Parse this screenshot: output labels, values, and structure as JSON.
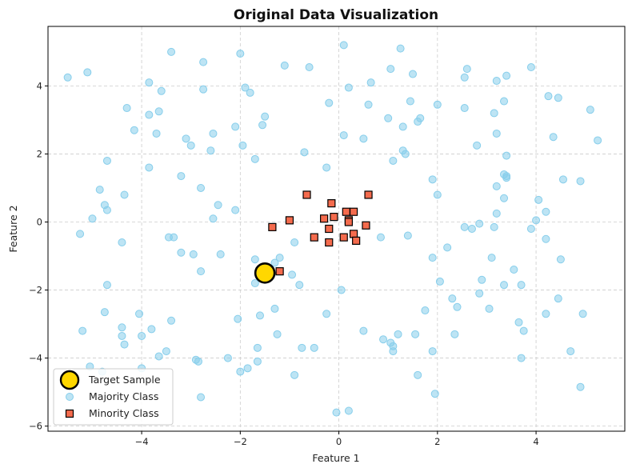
{
  "chart_data": {
    "type": "scatter",
    "title": "Original Data Visualization",
    "xlabel": "Feature 1",
    "ylabel": "Feature 2",
    "xlim": [
      -5.9,
      5.8
    ],
    "ylim": [
      -6.15,
      5.75
    ],
    "xticks": [
      -4,
      -2,
      0,
      2,
      4
    ],
    "yticks": [
      -6,
      -4,
      -2,
      0,
      2,
      4
    ],
    "grid": true,
    "legend_position": "bottom-left",
    "colors": {
      "majority": "#87ceeb",
      "minority": "#f46b4d",
      "target": "#ffd700",
      "grid": "#cccccc"
    },
    "series": [
      {
        "name": "Majority Class",
        "marker": "circle",
        "points": [
          [
            -5.5,
            4.25
          ],
          [
            -5.1,
            4.4
          ],
          [
            -3.4,
            5.0
          ],
          [
            -2.75,
            4.7
          ],
          [
            -2.0,
            4.95
          ],
          [
            0.1,
            5.2
          ],
          [
            1.25,
            5.1
          ],
          [
            -3.85,
            4.1
          ],
          [
            -3.6,
            3.85
          ],
          [
            -2.75,
            3.9
          ],
          [
            -1.9,
            3.95
          ],
          [
            -1.8,
            3.8
          ],
          [
            -1.1,
            4.6
          ],
          [
            -0.6,
            4.55
          ],
          [
            0.65,
            4.1
          ],
          [
            1.05,
            4.5
          ],
          [
            1.5,
            4.35
          ],
          [
            2.6,
            4.5
          ],
          [
            2.55,
            4.25
          ],
          [
            3.2,
            4.15
          ],
          [
            3.4,
            4.3
          ],
          [
            3.9,
            4.55
          ],
          [
            4.25,
            3.7
          ],
          [
            4.45,
            3.65
          ],
          [
            -4.3,
            3.35
          ],
          [
            -3.85,
            3.15
          ],
          [
            -3.65,
            3.25
          ],
          [
            -1.5,
            3.1
          ],
          [
            -0.2,
            3.5
          ],
          [
            0.2,
            3.95
          ],
          [
            0.6,
            3.45
          ],
          [
            1.45,
            3.55
          ],
          [
            1.0,
            3.05
          ],
          [
            2.55,
            3.35
          ],
          [
            2.0,
            3.45
          ],
          [
            3.35,
            3.55
          ],
          [
            5.1,
            3.3
          ],
          [
            -4.15,
            2.7
          ],
          [
            -3.7,
            2.6
          ],
          [
            -3.1,
            2.45
          ],
          [
            -3.0,
            2.25
          ],
          [
            -2.55,
            2.6
          ],
          [
            -2.6,
            2.1
          ],
          [
            -2.1,
            2.8
          ],
          [
            -1.55,
            2.85
          ],
          [
            -1.95,
            2.25
          ],
          [
            1.65,
            3.05
          ],
          [
            1.3,
            2.8
          ],
          [
            0.1,
            2.55
          ],
          [
            0.5,
            2.45
          ],
          [
            1.6,
            2.95
          ],
          [
            3.2,
            2.6
          ],
          [
            3.15,
            3.2
          ],
          [
            4.35,
            2.5
          ],
          [
            5.25,
            2.4
          ],
          [
            -0.7,
            2.05
          ],
          [
            -1.7,
            1.85
          ],
          [
            1.3,
            2.1
          ],
          [
            1.35,
            2.0
          ],
          [
            1.1,
            1.8
          ],
          [
            2.8,
            2.25
          ],
          [
            3.4,
            1.95
          ],
          [
            -4.7,
            1.8
          ],
          [
            -3.85,
            1.6
          ],
          [
            -3.2,
            1.35
          ],
          [
            -0.25,
            1.6
          ],
          [
            3.35,
            1.4
          ],
          [
            3.4,
            1.35
          ],
          [
            3.4,
            1.3
          ],
          [
            4.55,
            1.25
          ],
          [
            4.9,
            1.2
          ],
          [
            -4.85,
            0.95
          ],
          [
            -4.35,
            0.8
          ],
          [
            -2.8,
            1.0
          ],
          [
            1.9,
            1.25
          ],
          [
            3.2,
            1.05
          ],
          [
            3.35,
            0.7
          ],
          [
            4.05,
            0.65
          ],
          [
            -4.75,
            0.5
          ],
          [
            -4.7,
            0.35
          ],
          [
            -5.0,
            0.1
          ],
          [
            -2.45,
            0.5
          ],
          [
            -2.1,
            0.35
          ],
          [
            -2.55,
            0.1
          ],
          [
            2.0,
            0.8
          ],
          [
            3.2,
            0.25
          ],
          [
            4.0,
            0.05
          ],
          [
            4.2,
            0.3
          ],
          [
            -5.25,
            -0.35
          ],
          [
            -3.45,
            -0.45
          ],
          [
            -3.35,
            -0.45
          ],
          [
            -4.4,
            -0.6
          ],
          [
            -0.9,
            -0.6
          ],
          [
            0.85,
            -0.45
          ],
          [
            1.4,
            -0.4
          ],
          [
            2.55,
            -0.15
          ],
          [
            2.7,
            -0.2
          ],
          [
            2.85,
            -0.05
          ],
          [
            3.15,
            -0.15
          ],
          [
            3.9,
            -0.2
          ],
          [
            4.2,
            -0.5
          ],
          [
            -3.2,
            -0.9
          ],
          [
            -2.95,
            -0.95
          ],
          [
            -2.4,
            -0.95
          ],
          [
            -1.2,
            -1.05
          ],
          [
            -1.7,
            -1.1
          ],
          [
            -1.3,
            -1.2
          ],
          [
            1.9,
            -1.05
          ],
          [
            2.2,
            -0.75
          ],
          [
            3.1,
            -1.05
          ],
          [
            4.5,
            -1.1
          ],
          [
            -2.8,
            -1.45
          ],
          [
            -1.5,
            -1.55
          ],
          [
            -0.95,
            -1.55
          ],
          [
            -1.7,
            -1.8
          ],
          [
            -0.8,
            -1.85
          ],
          [
            0.05,
            -2.0
          ],
          [
            2.05,
            -1.75
          ],
          [
            2.9,
            -1.7
          ],
          [
            3.35,
            -1.85
          ],
          [
            3.55,
            -1.4
          ],
          [
            3.7,
            -1.85
          ],
          [
            -4.7,
            -1.85
          ],
          [
            -1.3,
            -2.55
          ],
          [
            -0.25,
            -2.7
          ],
          [
            1.75,
            -2.6
          ],
          [
            2.3,
            -2.25
          ],
          [
            2.4,
            -2.5
          ],
          [
            3.05,
            -2.55
          ],
          [
            2.85,
            -2.1
          ],
          [
            4.2,
            -2.7
          ],
          [
            4.45,
            -2.25
          ],
          [
            4.95,
            -2.7
          ],
          [
            -4.75,
            -2.65
          ],
          [
            -4.05,
            -2.7
          ],
          [
            -3.4,
            -2.9
          ],
          [
            -2.05,
            -2.85
          ],
          [
            -1.6,
            -2.75
          ],
          [
            -4.0,
            -3.35
          ],
          [
            -4.4,
            -3.1
          ],
          [
            -4.4,
            -3.35
          ],
          [
            -3.8,
            -3.15
          ],
          [
            -1.25,
            -3.3
          ],
          [
            0.5,
            -3.2
          ],
          [
            1.2,
            -3.3
          ],
          [
            1.55,
            -3.3
          ],
          [
            2.35,
            -3.3
          ],
          [
            3.65,
            -2.95
          ],
          [
            3.75,
            -3.2
          ],
          [
            -5.2,
            -3.2
          ],
          [
            -4.35,
            -3.6
          ],
          [
            -3.65,
            -3.95
          ],
          [
            -3.5,
            -3.8
          ],
          [
            -2.9,
            -4.05
          ],
          [
            -2.85,
            -4.1
          ],
          [
            -2.25,
            -4.0
          ],
          [
            -1.65,
            -3.7
          ],
          [
            -0.75,
            -3.7
          ],
          [
            -0.5,
            -3.7
          ],
          [
            0.9,
            -3.45
          ],
          [
            1.05,
            -3.55
          ],
          [
            1.1,
            -3.65
          ],
          [
            1.1,
            -3.8
          ],
          [
            1.9,
            -3.8
          ],
          [
            3.7,
            -4.0
          ],
          [
            4.7,
            -3.8
          ],
          [
            -5.05,
            -4.25
          ],
          [
            -4.0,
            -4.3
          ],
          [
            -2.0,
            -4.4
          ],
          [
            -1.85,
            -4.3
          ],
          [
            -1.65,
            -4.1
          ],
          [
            -0.9,
            -4.5
          ],
          [
            1.6,
            -4.5
          ],
          [
            -4.8,
            -4.4
          ],
          [
            -2.8,
            -5.15
          ],
          [
            1.95,
            -5.05
          ],
          [
            4.9,
            -4.85
          ],
          [
            -0.05,
            -5.6
          ],
          [
            0.2,
            -5.55
          ]
        ]
      },
      {
        "name": "Minority Class",
        "marker": "square",
        "points": [
          [
            -0.65,
            0.8
          ],
          [
            0.6,
            0.8
          ],
          [
            -0.15,
            0.55
          ],
          [
            0.15,
            0.3
          ],
          [
            0.3,
            0.3
          ],
          [
            -0.1,
            0.15
          ],
          [
            -0.3,
            0.1
          ],
          [
            0.2,
            0.05
          ],
          [
            0.2,
            0.0
          ],
          [
            -1.0,
            0.05
          ],
          [
            -1.35,
            -0.15
          ],
          [
            -0.2,
            -0.2
          ],
          [
            0.55,
            -0.1
          ],
          [
            0.3,
            -0.35
          ],
          [
            -0.5,
            -0.45
          ],
          [
            0.1,
            -0.45
          ],
          [
            0.35,
            -0.55
          ],
          [
            -0.2,
            -0.6
          ],
          [
            -1.6,
            -1.45
          ],
          [
            -1.2,
            -1.45
          ]
        ]
      },
      {
        "name": "Target Sample",
        "marker": "large-circle",
        "points": [
          [
            -1.5,
            -1.5
          ]
        ]
      }
    ]
  }
}
